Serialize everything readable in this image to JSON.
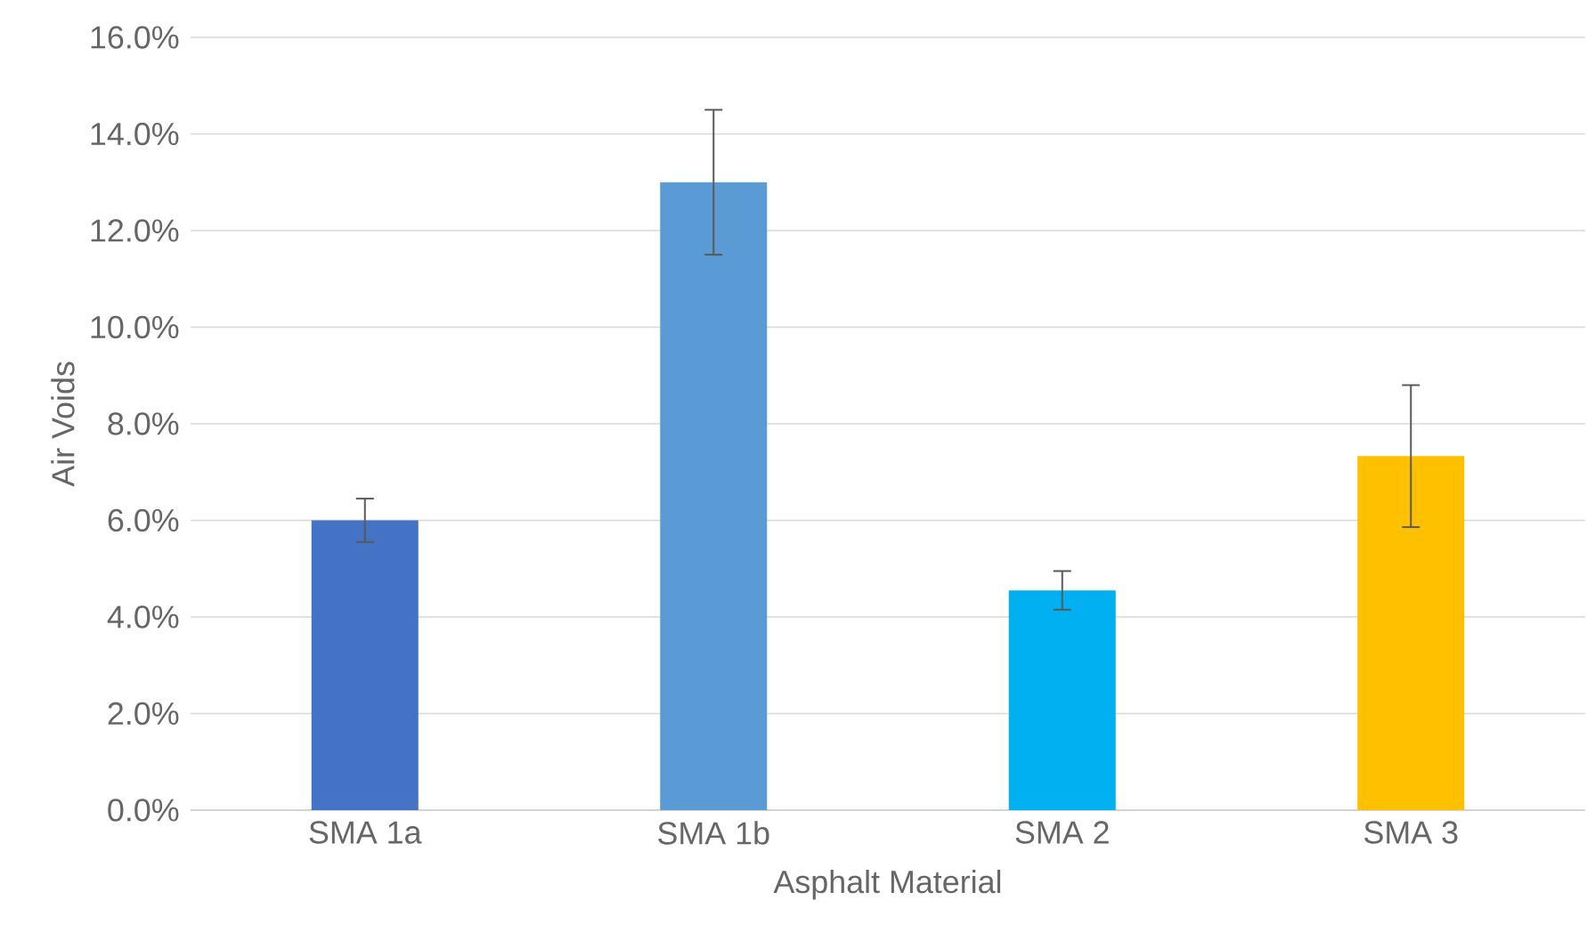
{
  "chart_data": {
    "type": "bar",
    "xlabel": "Asphalt Material",
    "ylabel": "Air Voids",
    "categories": [
      "SMA 1a",
      "SMA 1b",
      "SMA 2",
      "SMA 3"
    ],
    "values": [
      6.0,
      13.0,
      4.55,
      7.33
    ],
    "errors": [
      0.45,
      1.5,
      0.4,
      1.47
    ],
    "colors": [
      "#4472c4",
      "#5b9bd5",
      "#00b0f0",
      "#ffc000"
    ],
    "ylim": [
      0,
      16
    ],
    "yticks": [
      {
        "value": 0,
        "label": "0.0%"
      },
      {
        "value": 2,
        "label": "2.0%"
      },
      {
        "value": 4,
        "label": "4.0%"
      },
      {
        "value": 6,
        "label": "6.0%"
      },
      {
        "value": 8,
        "label": "8.0%"
      },
      {
        "value": 10,
        "label": "10.0%"
      },
      {
        "value": 12,
        "label": "12.0%"
      },
      {
        "value": 14,
        "label": "14.0%"
      },
      {
        "value": 16,
        "label": "16.0%"
      }
    ],
    "grid": "y"
  }
}
